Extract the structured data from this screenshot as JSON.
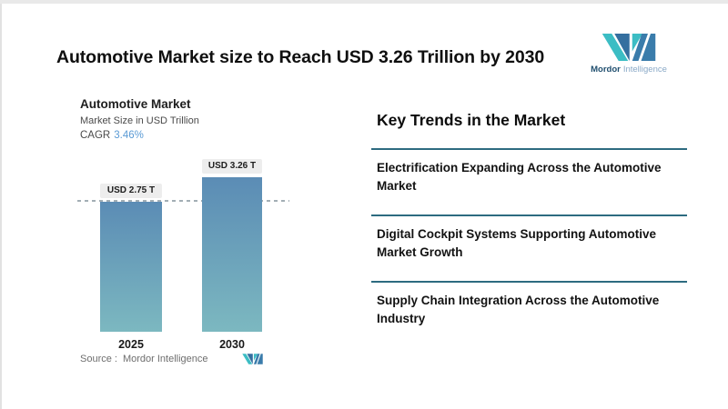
{
  "page": {
    "title": "Automotive Market size to Reach USD 3.26 Trillion by 2030"
  },
  "brand": {
    "name_primary": "Mordor",
    "name_secondary": "Intelligence",
    "teal": "#3cbdc4",
    "blue": "#3a7cab",
    "dark_blue": "#346f9f",
    "wordmark_primary_color": "#1f4e6e",
    "wordmark_secondary_color": "#8aa9c7"
  },
  "chart": {
    "title": "Automotive Market",
    "subtitle": "Market Size in USD Trillion",
    "cagr_label": "CAGR",
    "cagr_value": "3.46%",
    "cagr_value_color": "#5b9bd5",
    "source_label": "Source :",
    "source_value": "Mordor Intelligence"
  },
  "chart_data": {
    "type": "bar",
    "title": "Automotive Market",
    "subtitle": "Market Size in USD Trillion",
    "cagr": "3.46%",
    "unit": "USD Trillion",
    "categories": [
      "2025",
      "2030"
    ],
    "values": [
      2.75,
      3.26
    ],
    "value_labels": [
      "USD 2.75 T",
      "USD 3.26 T"
    ],
    "ylim": [
      0,
      3.5
    ],
    "bar_gradient_top": "#5b8cb5",
    "bar_gradient_bottom": "#7cb8c0",
    "value_label_bg": "#ededed",
    "reference_line": {
      "y": 2.75,
      "style": "dashed",
      "color": "#a3aeb5"
    }
  },
  "trends": {
    "heading": "Key Trends in the Market",
    "divider_color": "#2d6b80",
    "items": [
      {
        "text": "Electrification Expanding Across the Automotive Market"
      },
      {
        "text": "Digital Cockpit Systems Supporting Automotive Market Growth"
      },
      {
        "text": "Supply Chain Integration Across the Automotive Industry"
      }
    ]
  }
}
